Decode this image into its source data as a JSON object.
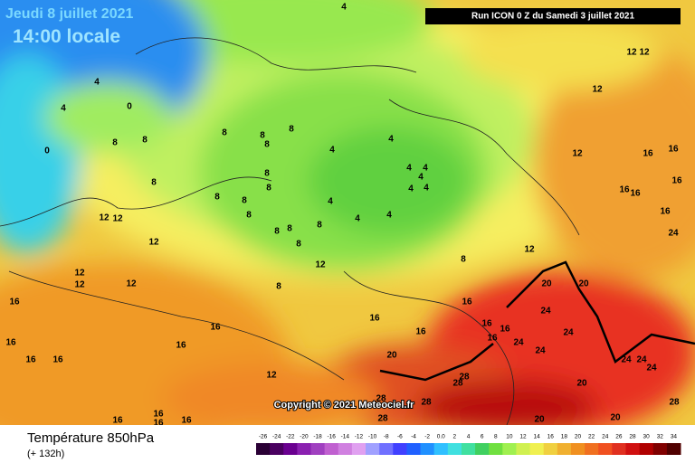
{
  "header": {
    "date": "Jeudi 8 juillet 2021",
    "time": "14:00 locale",
    "run": "Run ICON 0 Z du Samedi 3 juillet 2021"
  },
  "map": {
    "copyright": "Copyright © 2021 Meteociel.fr",
    "contour_labels": [
      "4",
      "4",
      "4",
      "0",
      "0",
      "8",
      "8",
      "8",
      "8",
      "8",
      "8",
      "4",
      "4",
      "4",
      "4",
      "4",
      "4",
      "4",
      "4",
      "4",
      "4",
      "8",
      "8",
      "8",
      "8",
      "8",
      "8",
      "8",
      "8",
      "8",
      "8",
      "8",
      "8",
      "12",
      "12",
      "12",
      "12",
      "12",
      "12",
      "12",
      "12",
      "12",
      "12",
      "12",
      "12",
      "16",
      "16",
      "16",
      "16",
      "16",
      "16",
      "12",
      "16",
      "16",
      "16",
      "16",
      "16",
      "16",
      "16",
      "16",
      "16",
      "16",
      "16",
      "16",
      "20",
      "20",
      "20",
      "24",
      "24",
      "24",
      "24",
      "24",
      "24",
      "24",
      "20",
      "28",
      "28",
      "28",
      "20",
      "20",
      "28",
      "28",
      "24",
      "16",
      "16",
      "16",
      "16",
      "28"
    ]
  },
  "footer": {
    "title": "Température 850hPa",
    "lead": "(+ 132h)"
  },
  "colorbar": {
    "labels": [
      "-26",
      "-24",
      "-22",
      "-20",
      "-18",
      "-16",
      "-14",
      "-12",
      "-10",
      "-8",
      "-6",
      "-4",
      "-2",
      "0.0",
      "2",
      "4",
      "6",
      "8",
      "10",
      "12",
      "14",
      "16",
      "18",
      "20",
      "22",
      "24",
      "26",
      "28",
      "30",
      "32",
      "34"
    ],
    "colors": [
      "#2a0035",
      "#4a0060",
      "#6a0090",
      "#8a20b0",
      "#a040c0",
      "#c060d0",
      "#d080e0",
      "#e0a0f0",
      "#a0a0ff",
      "#7070ff",
      "#4040ff",
      "#2060ff",
      "#2090ff",
      "#30c0ff",
      "#40e0e0",
      "#40e0a0",
      "#40d060",
      "#70e040",
      "#a0f050",
      "#d0f050",
      "#f0f050",
      "#f0d040",
      "#f0b030",
      "#f09020",
      "#f07020",
      "#f05020",
      "#e03020",
      "#d01010",
      "#b00000",
      "#800000",
      "#500000"
    ]
  }
}
